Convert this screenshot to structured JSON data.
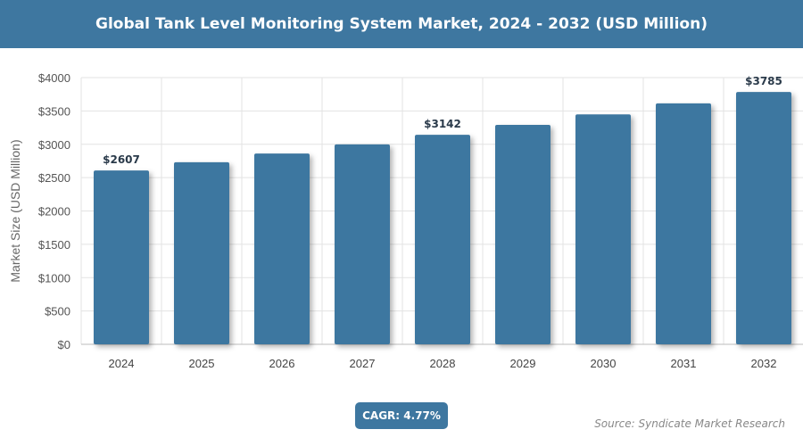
{
  "header": {
    "title": "Global Tank Level Monitoring System Market, 2024 - 2032 (USD Million)"
  },
  "chart_data": {
    "type": "bar",
    "title": "Global Tank Level Monitoring System Market, 2024 - 2032 (USD Million)",
    "categories": [
      "2024",
      "2025",
      "2026",
      "2027",
      "2028",
      "2029",
      "2030",
      "2031",
      "2032"
    ],
    "values": [
      2607,
      2731,
      2862,
      2998,
      3142,
      3291,
      3448,
      3613,
      3785
    ],
    "data_labels": {
      "0": "$2607",
      "4": "$3142",
      "8": "$3785"
    },
    "ylabel": "Market Size (USD Million)",
    "xlabel": "",
    "ylim": [
      0,
      4000
    ],
    "yticks": [
      0,
      500,
      1000,
      1500,
      2000,
      2500,
      3000,
      3500,
      4000
    ],
    "ytick_labels": [
      "$0",
      "$500",
      "$1000",
      "$1500",
      "$2000",
      "$2500",
      "$3000",
      "$3500",
      "$4000"
    ],
    "grid": true,
    "bar_color": "#3e77a0"
  },
  "footer": {
    "cagr": "CAGR: 4.77%",
    "source": "Source: Syndicate Market Research"
  }
}
